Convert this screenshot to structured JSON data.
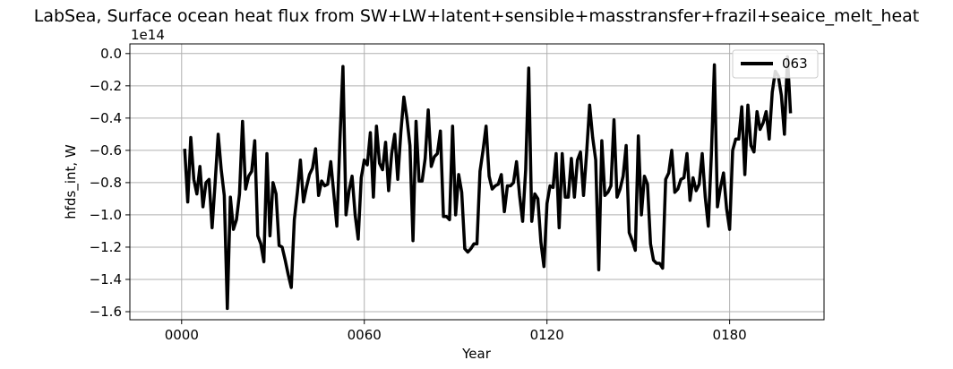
{
  "chart_data": {
    "type": "line",
    "title": "LabSea, Surface ocean heat flux from SW+LW+latent+sensible+masstransfer+frazil+seaice_melt_heat",
    "xlabel": "Year",
    "ylabel": "hfds_int, W",
    "y_offset_label": "1e14",
    "xlim": [
      -17,
      211
    ],
    "ylim": [
      -1.65,
      0.06
    ],
    "x_ticks": [
      0,
      60,
      120,
      180
    ],
    "x_tick_labels": [
      "0000",
      "0060",
      "0120",
      "0180"
    ],
    "y_ticks": [
      0.0,
      -0.2,
      -0.4,
      -0.6,
      -0.8,
      -1.0,
      -1.2,
      -1.4,
      -1.6
    ],
    "y_tick_labels": [
      "0.0",
      "−0.2",
      "−0.4",
      "−0.6",
      "−0.8",
      "−1.0",
      "−1.2",
      "−1.4",
      "−1.6"
    ],
    "grid": true,
    "legend_position": "top-right",
    "series": [
      {
        "name": "063",
        "color": "#000000",
        "x": [
          1,
          2,
          3,
          4,
          5,
          6,
          7,
          8,
          9,
          10,
          11,
          12,
          13,
          14,
          15,
          16,
          17,
          18,
          19,
          20,
          21,
          22,
          23,
          24,
          25,
          26,
          27,
          28,
          29,
          30,
          31,
          32,
          33,
          34,
          35,
          36,
          37,
          38,
          39,
          40,
          41,
          42,
          43,
          44,
          45,
          46,
          47,
          48,
          49,
          50,
          51,
          52,
          53,
          54,
          55,
          56,
          57,
          58,
          59,
          60,
          61,
          62,
          63,
          64,
          65,
          66,
          67,
          68,
          69,
          70,
          71,
          72,
          73,
          74,
          75,
          76,
          77,
          78,
          79,
          80,
          81,
          82,
          83,
          84,
          85,
          86,
          87,
          88,
          89,
          90,
          91,
          92,
          93,
          94,
          95,
          96,
          97,
          98,
          99,
          100,
          101,
          102,
          103,
          104,
          105,
          106,
          107,
          108,
          109,
          110,
          111,
          112,
          113,
          114,
          115,
          116,
          117,
          118,
          119,
          120,
          121,
          122,
          123,
          124,
          125,
          126,
          127,
          128,
          129,
          130,
          131,
          132,
          133,
          134,
          135,
          136,
          137,
          138,
          139,
          140,
          141,
          142,
          143,
          144,
          145,
          146,
          147,
          148,
          149,
          150,
          151,
          152,
          153,
          154,
          155,
          156,
          157,
          158,
          159,
          160,
          161,
          162,
          163,
          164,
          165,
          166,
          167,
          168,
          169,
          170,
          171,
          172,
          173,
          174,
          175,
          176,
          177,
          178,
          179,
          180,
          181,
          182,
          183,
          184,
          185,
          186,
          187,
          188,
          189,
          190,
          191,
          192,
          193,
          194,
          195,
          196,
          197,
          198,
          199,
          200
        ],
        "values": [
          -0.59,
          -0.92,
          -0.52,
          -0.78,
          -0.87,
          -0.7,
          -0.95,
          -0.8,
          -0.78,
          -1.08,
          -0.8,
          -0.5,
          -0.72,
          -0.88,
          -1.58,
          -0.89,
          -1.09,
          -1.03,
          -0.87,
          -0.42,
          -0.84,
          -0.76,
          -0.73,
          -0.54,
          -1.13,
          -1.18,
          -1.29,
          -0.62,
          -1.13,
          -0.8,
          -0.87,
          -1.19,
          -1.2,
          -1.28,
          -1.37,
          -1.45,
          -1.03,
          -0.86,
          -0.66,
          -0.92,
          -0.83,
          -0.75,
          -0.71,
          -0.59,
          -0.88,
          -0.79,
          -0.82,
          -0.81,
          -0.67,
          -0.87,
          -1.07,
          -0.54,
          -0.08,
          -1.0,
          -0.85,
          -0.76,
          -1.0,
          -1.15,
          -0.77,
          -0.66,
          -0.69,
          -0.49,
          -0.89,
          -0.45,
          -0.68,
          -0.72,
          -0.55,
          -0.85,
          -0.62,
          -0.5,
          -0.78,
          -0.49,
          -0.27,
          -0.4,
          -0.57,
          -1.16,
          -0.42,
          -0.79,
          -0.79,
          -0.65,
          -0.35,
          -0.7,
          -0.64,
          -0.62,
          -0.48,
          -1.01,
          -1.01,
          -1.03,
          -0.45,
          -1.0,
          -0.75,
          -0.86,
          -1.21,
          -1.23,
          -1.21,
          -1.18,
          -1.18,
          -0.73,
          -0.6,
          -0.45,
          -0.76,
          -0.84,
          -0.82,
          -0.81,
          -0.75,
          -0.98,
          -0.82,
          -0.82,
          -0.8,
          -0.67,
          -0.88,
          -1.04,
          -0.72,
          -0.09,
          -1.04,
          -0.87,
          -0.9,
          -1.17,
          -1.32,
          -0.93,
          -0.82,
          -0.83,
          -0.62,
          -1.08,
          -0.62,
          -0.89,
          -0.89,
          -0.65,
          -0.89,
          -0.66,
          -0.61,
          -0.88,
          -0.62,
          -0.32,
          -0.52,
          -0.66,
          -1.34,
          -0.54,
          -0.88,
          -0.86,
          -0.82,
          -0.41,
          -0.89,
          -0.84,
          -0.76,
          -0.57,
          -1.11,
          -1.16,
          -1.22,
          -0.51,
          -1.0,
          -0.76,
          -0.81,
          -1.18,
          -1.28,
          -1.3,
          -1.3,
          -1.33,
          -0.78,
          -0.74,
          -0.6,
          -0.86,
          -0.84,
          -0.78,
          -0.77,
          -0.62,
          -0.91,
          -0.77,
          -0.85,
          -0.81,
          -0.62,
          -0.89,
          -1.07,
          -0.63,
          -0.07,
          -0.95,
          -0.83,
          -0.74,
          -0.96,
          -1.09,
          -0.6,
          -0.53,
          -0.53,
          -0.33,
          -0.75,
          -0.32,
          -0.57,
          -0.61,
          -0.36,
          -0.47,
          -0.43,
          -0.36,
          -0.53,
          -0.24,
          -0.11,
          -0.14,
          -0.26,
          -0.5,
          -0.02,
          -0.37
        ]
      }
    ]
  }
}
